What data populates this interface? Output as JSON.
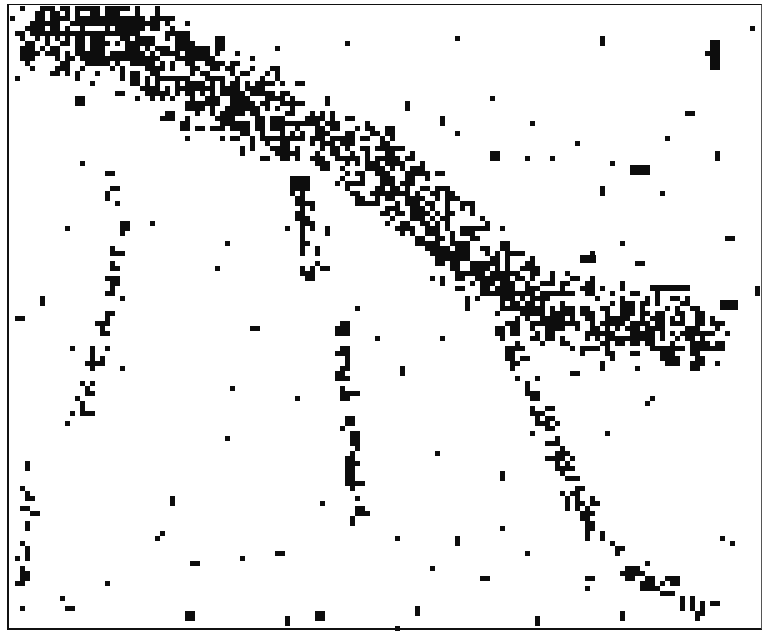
{
  "image": {
    "kind": "binary thresholded photograph",
    "foreground_color": "#0d0d0d",
    "background_color": "#ffffff",
    "has_frame": true
  }
}
